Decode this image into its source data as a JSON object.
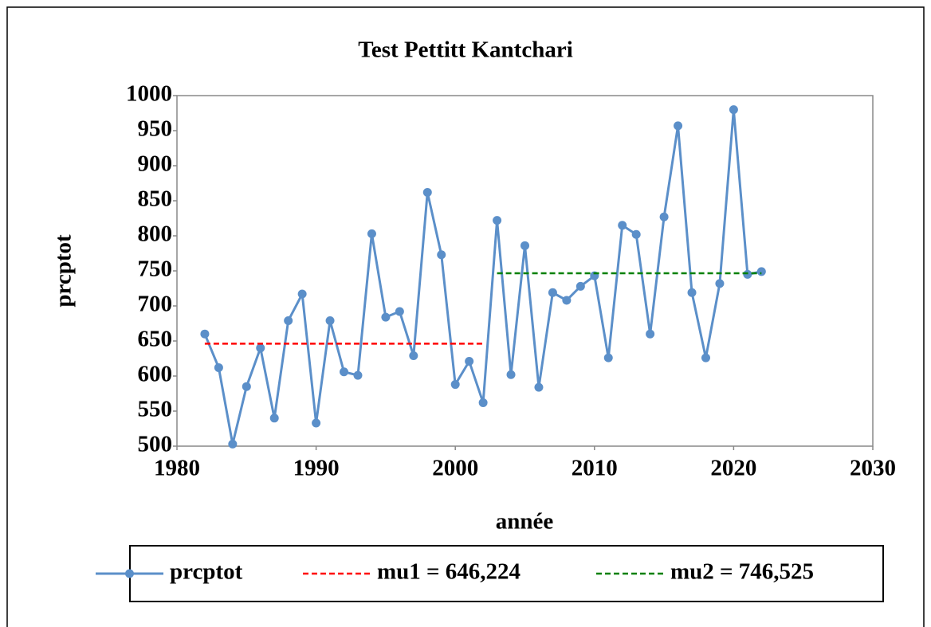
{
  "chart_data": {
    "type": "line",
    "title": "Test Pettitt Kantchari",
    "x_label": "année",
    "y_label": "prcptot",
    "xlim": [
      1980,
      2030
    ],
    "xticks": [
      1980,
      1990,
      2000,
      2010,
      2020,
      2030
    ],
    "ylim": [
      500,
      1000
    ],
    "yticks": [
      500,
      550,
      600,
      650,
      700,
      750,
      800,
      850,
      900,
      950,
      1000
    ],
    "grid": false,
    "legend": "bottom",
    "series": [
      {
        "name": "prcptot",
        "color": "#5b8fc9",
        "style": "solid",
        "markers": true,
        "x": [
          1982,
          1983,
          1984,
          1985,
          1986,
          1987,
          1988,
          1989,
          1990,
          1991,
          1992,
          1993,
          1994,
          1995,
          1996,
          1997,
          1998,
          1999,
          2000,
          2001,
          2002,
          2003,
          2004,
          2005,
          2006,
          2007,
          2008,
          2009,
          2010,
          2011,
          2012,
          2013,
          2014,
          2015,
          2016,
          2017,
          2018,
          2019,
          2020,
          2021,
          2022
        ],
        "values": [
          660,
          612,
          503,
          585,
          640,
          540,
          679,
          717,
          533,
          679,
          606,
          601,
          803,
          684,
          692,
          629,
          862,
          773,
          588,
          621,
          562,
          822,
          602,
          786,
          584,
          719,
          708,
          728,
          743,
          626,
          815,
          802,
          660,
          827,
          957,
          719,
          626,
          732,
          980,
          745,
          749
        ]
      },
      {
        "name": "mu1 = 646,224",
        "color": "#ff0000",
        "style": "dashed",
        "markers": false,
        "x": [
          1982,
          2002
        ],
        "values": [
          646.224,
          646.224
        ]
      },
      {
        "name": "mu2 = 746,525",
        "color": "#008000",
        "style": "dashed",
        "markers": false,
        "x": [
          2003,
          2022
        ],
        "values": [
          746.525,
          746.525
        ]
      }
    ]
  }
}
